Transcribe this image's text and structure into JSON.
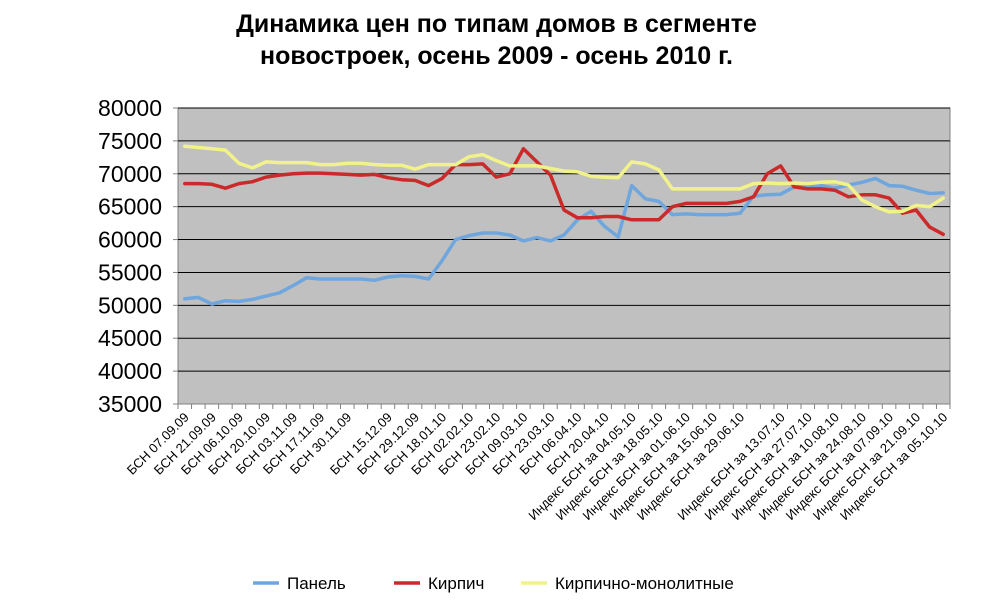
{
  "title_lines": [
    "Динамика цен по типам домов в сегменте",
    "новостроек, осень 2009 - осень 2010 г."
  ],
  "chart_data": {
    "type": "line",
    "title": "Динамика цен по типам домов в сегменте новостроек, осень 2009 - осень 2010 г.",
    "xlabel": "",
    "ylabel": "",
    "ylim": [
      35000,
      80000
    ],
    "yticks": [
      35000,
      40000,
      45000,
      50000,
      55000,
      60000,
      65000,
      70000,
      75000,
      80000
    ],
    "grid": true,
    "legend_position": "bottom",
    "plot_background": "#c0c0c0",
    "x_labels_shown": [
      "БСН 07.09.09",
      "БСН 21.09.09",
      "БСН 06.10.09",
      "БСН 20.10.09",
      "БСН 03.11.09",
      "БСН 17.11.09",
      "БСН 30.11.09",
      "БСН 15.12.09",
      "БСН 29.12.09",
      "БСН 18.01.10",
      "БСН 02.02.10",
      "БСН 23.02.10",
      "БСН 09.03.10",
      "БСН 23.03.10",
      "БСН 06.04.10",
      "БСН 20.04.10",
      "Индекс БСН за 04.05.10",
      "Индекс БСН за 18.05.10",
      "Индекс БСН за 01.06.10",
      "Индекс БСН за 15.06.10",
      "Индекс БСН за 29.06.10",
      "Индекс БСН за 13.07.10",
      "Индекс БСН за 27.07.10",
      "Индекс БСН за 10.08.10",
      "Индекс БСН за 24.08.10",
      "Индекс БСН за 07.09.10",
      "Индекс БСН за 21.09.10",
      "Индекс БСН за 05.10.10"
    ],
    "series": [
      {
        "name": "Панель",
        "color": "#6fa6de",
        "values": [
          51000,
          51200,
          50200,
          50700,
          50600,
          50900,
          51400,
          51900,
          53000,
          54200,
          54000,
          54000,
          54000,
          54000,
          53800,
          54300,
          54500,
          54400,
          54000,
          56800,
          60000,
          60600,
          61000,
          61000,
          60700,
          59800,
          60300,
          59800,
          60700,
          63000,
          64300,
          62000,
          60400,
          68200,
          66200,
          65800,
          63800,
          63900,
          63800,
          63800,
          63800,
          64000,
          66600,
          66800,
          66900,
          68000,
          68200,
          68200,
          67800,
          68300,
          68700,
          69300,
          68200,
          68100,
          67500,
          67000,
          67100
        ]
      },
      {
        "name": "Кирпич",
        "color": "#cc2a2a",
        "values": [
          68500,
          68500,
          68400,
          67800,
          68500,
          68800,
          69500,
          69800,
          70000,
          70100,
          70100,
          70000,
          69900,
          69800,
          69900,
          69400,
          69100,
          69000,
          68200,
          69300,
          71400,
          71400,
          71500,
          69500,
          70000,
          73800,
          71800,
          69800,
          64500,
          63300,
          63300,
          63500,
          63500,
          63000,
          63000,
          63000,
          65000,
          65500,
          65500,
          65500,
          65500,
          65800,
          66500,
          70000,
          71200,
          68000,
          67700,
          67700,
          67500,
          66500,
          66800,
          66800,
          66300,
          64000,
          64500,
          61900,
          60800
        ]
      },
      {
        "name": "Кирпично-монолитные",
        "color": "#f2f28a",
        "values": [
          74200,
          74000,
          73800,
          73600,
          71600,
          70900,
          71800,
          71700,
          71700,
          71700,
          71400,
          71400,
          71600,
          71600,
          71400,
          71300,
          71300,
          70700,
          71400,
          71400,
          71400,
          72600,
          72900,
          72000,
          71200,
          71200,
          71200,
          70800,
          70400,
          70300,
          69600,
          69500,
          69400,
          71800,
          71500,
          70600,
          67700,
          67700,
          67700,
          67700,
          67700,
          67700,
          68500,
          68600,
          68500,
          68600,
          68500,
          68700,
          68800,
          68300,
          66000,
          65000,
          64200,
          64300,
          65200,
          65000,
          66300
        ]
      }
    ]
  }
}
